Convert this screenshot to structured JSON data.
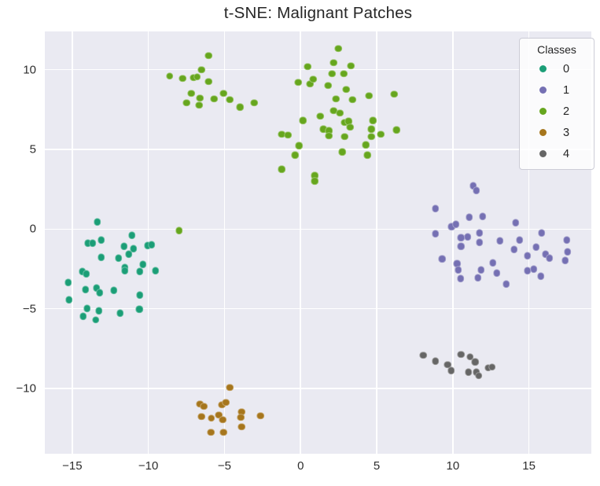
{
  "figure": {
    "title": "t-SNE: Malignant Patches"
  },
  "legend": {
    "title": "Classes"
  },
  "chart_data": {
    "type": "scatter",
    "title": "t-SNE: Malignant Patches",
    "xlabel": "",
    "ylabel": "",
    "xlim": [
      -16.8,
      19.1
    ],
    "ylim": [
      -14.1,
      12.4
    ],
    "xticks": [
      -15,
      -10,
      -5,
      0,
      5,
      10,
      15
    ],
    "yticks": [
      -10,
      -5,
      0,
      5,
      10
    ],
    "grid": true,
    "plot_background": "#eaeaf2",
    "grid_color": "#ffffff",
    "legend_title": "Classes",
    "legend_position": "upper right",
    "series": [
      {
        "name": "0",
        "color": "#1b9e77",
        "points": [
          [
            -13.35,
            0.44
          ],
          [
            -13.09,
            -0.69
          ],
          [
            -13.97,
            -0.89
          ],
          [
            -13.66,
            -0.89
          ],
          [
            -11.07,
            -0.39
          ],
          [
            -11.59,
            -1.08
          ],
          [
            -10.97,
            -1.23
          ],
          [
            -10.04,
            -1.03
          ],
          [
            -9.78,
            -0.99
          ],
          [
            -11.28,
            -1.58
          ],
          [
            -13.09,
            -1.77
          ],
          [
            -11.95,
            -1.82
          ],
          [
            -10.35,
            -2.22
          ],
          [
            -11.54,
            -2.41
          ],
          [
            -11.54,
            -2.61
          ],
          [
            -10.55,
            -2.66
          ],
          [
            -9.52,
            -2.61
          ],
          [
            -14.33,
            -2.66
          ],
          [
            -14.07,
            -2.81
          ],
          [
            -15.26,
            -3.35
          ],
          [
            -14.12,
            -3.79
          ],
          [
            -13.4,
            -3.69
          ],
          [
            -13.19,
            -3.99
          ],
          [
            -12.26,
            -3.84
          ],
          [
            -15.21,
            -4.43
          ],
          [
            -10.55,
            -4.14
          ],
          [
            -14.02,
            -4.98
          ],
          [
            -13.24,
            -5.12
          ],
          [
            -10.6,
            -5.02
          ],
          [
            -14.28,
            -5.47
          ],
          [
            -13.45,
            -5.71
          ],
          [
            -11.85,
            -5.27
          ]
        ]
      },
      {
        "name": "1",
        "color": "#7570b3",
        "points": [
          [
            11.33,
            2.71
          ],
          [
            11.54,
            2.41
          ],
          [
            8.85,
            1.28
          ],
          [
            11.07,
            0.74
          ],
          [
            11.95,
            0.79
          ],
          [
            9.93,
            0.15
          ],
          [
            10.19,
            0.3
          ],
          [
            14.12,
            0.39
          ],
          [
            8.85,
            -0.3
          ],
          [
            10.55,
            -0.54
          ],
          [
            10.97,
            -0.49
          ],
          [
            11.74,
            -0.25
          ],
          [
            11.74,
            -0.84
          ],
          [
            13.09,
            -0.74
          ],
          [
            14.38,
            -0.69
          ],
          [
            14.02,
            -1.28
          ],
          [
            15.83,
            -0.25
          ],
          [
            15.47,
            -1.13
          ],
          [
            17.49,
            -0.69
          ],
          [
            17.54,
            -1.43
          ],
          [
            10.55,
            -1.08
          ],
          [
            9.31,
            -1.87
          ],
          [
            10.29,
            -2.17
          ],
          [
            10.35,
            -2.56
          ],
          [
            12.62,
            -2.12
          ],
          [
            11.85,
            -2.56
          ],
          [
            12.88,
            -2.76
          ],
          [
            14.9,
            -1.67
          ],
          [
            16.09,
            -1.58
          ],
          [
            16.35,
            -1.82
          ],
          [
            17.38,
            -1.97
          ],
          [
            14.9,
            -2.61
          ],
          [
            15.31,
            -2.51
          ],
          [
            15.78,
            -2.96
          ],
          [
            10.5,
            -3.1
          ],
          [
            11.64,
            -3.05
          ],
          [
            13.5,
            -3.45
          ]
        ]
      },
      {
        "name": "2",
        "color": "#66a61e",
        "points": [
          [
            -6.05,
            10.89
          ],
          [
            -6.52,
            10.0
          ],
          [
            -8.59,
            9.61
          ],
          [
            -7.76,
            9.46
          ],
          [
            -7.03,
            9.51
          ],
          [
            -6.78,
            9.56
          ],
          [
            -6.05,
            9.26
          ],
          [
            -7.19,
            8.52
          ],
          [
            -7.5,
            7.93
          ],
          [
            -6.62,
            8.23
          ],
          [
            -6.67,
            7.78
          ],
          [
            -5.69,
            8.18
          ],
          [
            -5.07,
            8.52
          ],
          [
            -4.66,
            8.13
          ],
          [
            -3.98,
            7.64
          ],
          [
            -3.05,
            7.93
          ],
          [
            2.48,
            11.33
          ],
          [
            0.47,
            10.2
          ],
          [
            2.17,
            10.44
          ],
          [
            3.31,
            10.25
          ],
          [
            2.07,
            9.75
          ],
          [
            2.85,
            9.75
          ],
          [
            -0.16,
            9.21
          ],
          [
            0.62,
            9.11
          ],
          [
            0.83,
            9.41
          ],
          [
            1.81,
            9.01
          ],
          [
            3.0,
            8.77
          ],
          [
            2.33,
            8.18
          ],
          [
            3.41,
            8.13
          ],
          [
            4.5,
            8.37
          ],
          [
            6.16,
            8.47
          ],
          [
            2.17,
            7.44
          ],
          [
            2.59,
            7.29
          ],
          [
            1.29,
            7.09
          ],
          [
            0.16,
            6.8
          ],
          [
            2.9,
            6.7
          ],
          [
            3.16,
            6.75
          ],
          [
            3.26,
            6.4
          ],
          [
            4.76,
            6.8
          ],
          [
            1.5,
            6.26
          ],
          [
            1.86,
            6.16
          ],
          [
            1.86,
            5.86
          ],
          [
            2.9,
            5.81
          ],
          [
            4.66,
            6.26
          ],
          [
            5.28,
            5.96
          ],
          [
            6.31,
            6.21
          ],
          [
            4.66,
            5.81
          ],
          [
            -1.24,
            5.96
          ],
          [
            -0.83,
            5.91
          ],
          [
            -0.1,
            5.22
          ],
          [
            -0.36,
            4.63
          ],
          [
            2.74,
            4.83
          ],
          [
            4.29,
            5.27
          ],
          [
            4.4,
            4.63
          ],
          [
            -1.24,
            3.74
          ],
          [
            0.93,
            3.35
          ],
          [
            0.93,
            3.0
          ],
          [
            -7.97,
            -0.1
          ]
        ]
      },
      {
        "name": "3",
        "color": "#a6761d",
        "points": [
          [
            -4.66,
            -9.95
          ],
          [
            -6.62,
            -10.99
          ],
          [
            -6.36,
            -11.13
          ],
          [
            -5.17,
            -11.03
          ],
          [
            -4.91,
            -10.89
          ],
          [
            -6.52,
            -11.77
          ],
          [
            -5.85,
            -11.87
          ],
          [
            -5.38,
            -11.67
          ],
          [
            -5.12,
            -11.97
          ],
          [
            -3.88,
            -11.48
          ],
          [
            -3.93,
            -11.82
          ],
          [
            -2.64,
            -11.72
          ],
          [
            -3.88,
            -12.41
          ],
          [
            -5.9,
            -12.76
          ],
          [
            -5.07,
            -12.76
          ]
        ]
      },
      {
        "name": "4",
        "color": "#666666",
        "points": [
          [
            8.07,
            -7.93
          ],
          [
            8.85,
            -8.28
          ],
          [
            9.67,
            -8.52
          ],
          [
            9.88,
            -8.87
          ],
          [
            10.55,
            -7.88
          ],
          [
            11.12,
            -8.03
          ],
          [
            11.48,
            -8.33
          ],
          [
            11.02,
            -8.97
          ],
          [
            11.54,
            -8.97
          ],
          [
            11.69,
            -9.21
          ],
          [
            12.31,
            -8.72
          ],
          [
            12.57,
            -8.67
          ]
        ]
      }
    ]
  }
}
